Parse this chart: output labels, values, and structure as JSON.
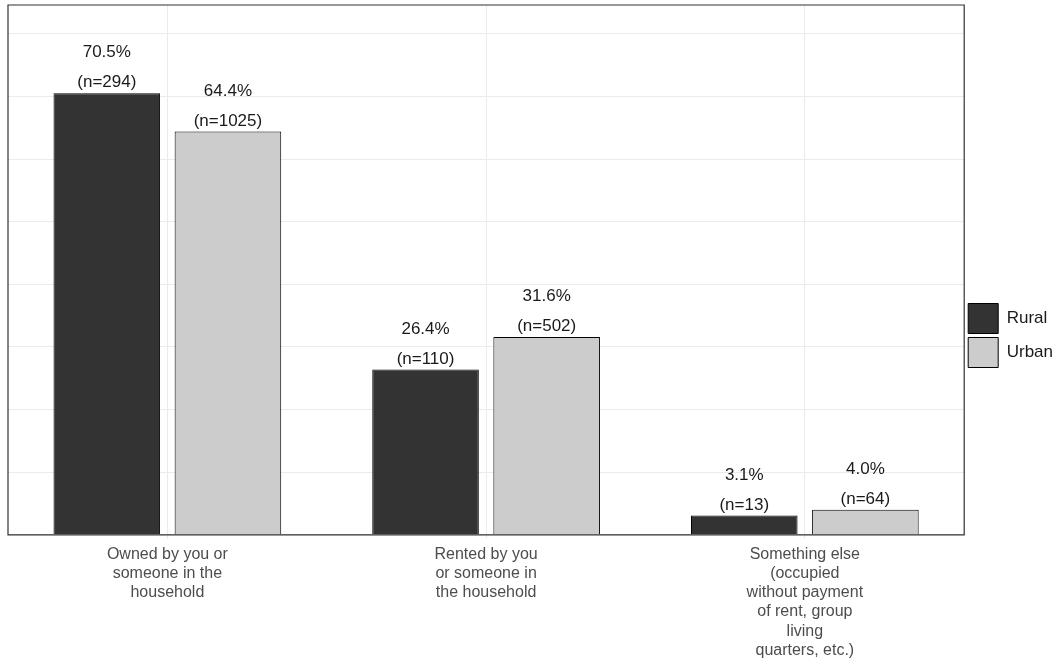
{
  "chart_data": {
    "type": "bar",
    "categories": [
      "Owned by you or someone in the household",
      "Rented by you or someone in the household",
      "Something else (occupied without payment of rent, group living quarters, etc.)"
    ],
    "series": [
      {
        "name": "Rural",
        "color": "#333333",
        "values": [
          70.5,
          26.4,
          3.1
        ],
        "value_labels": [
          "70.5% (n=294)",
          "26.4% (n=110)",
          "3.1% (n=13)"
        ]
      },
      {
        "name": "Urban",
        "color": "#cccccc",
        "values": [
          64.4,
          31.6,
          4.0
        ],
        "value_labels": [
          "64.4% (n=1025)",
          "31.6% (n=502)",
          "4.0% (n=64)"
        ]
      }
    ],
    "ylim": [
      0,
      84.6
    ],
    "yticks": [
      {
        "value": 0,
        "label": null
      },
      {
        "value": 10,
        "label": null
      },
      {
        "value": 20,
        "label": null
      },
      {
        "value": 30,
        "label": null
      },
      {
        "value": 40,
        "label": null
      },
      {
        "value": 50,
        "label": null
      },
      {
        "value": 60,
        "label": null
      },
      {
        "value": 70,
        "label": null
      },
      {
        "value": 80,
        "label": null
      }
    ],
    "tick_labels": "x",
    "grid": true,
    "legend": "right"
  }
}
